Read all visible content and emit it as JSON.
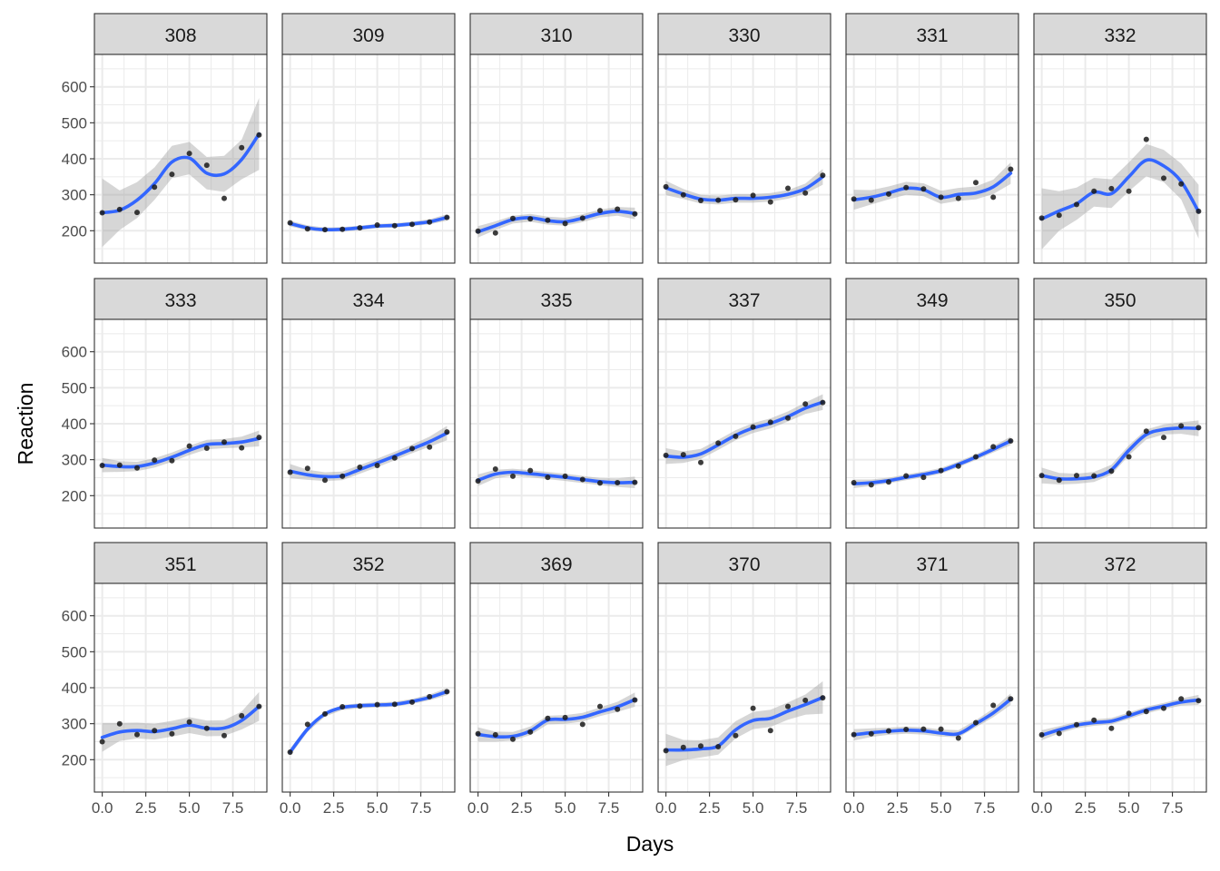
{
  "chart_data": {
    "type": "scatter",
    "xlabel": "Days",
    "ylabel": "Reaction",
    "xlim": [
      -0.45,
      9.45
    ],
    "ylim": [
      110,
      690
    ],
    "xticks": [
      0.0,
      2.5,
      5.0,
      7.5
    ],
    "xtick_labels": [
      "0.0",
      "2.5",
      "5.0",
      "7.5"
    ],
    "yticks": [
      200,
      300,
      400,
      500,
      600
    ],
    "ytick_labels": [
      "200",
      "300",
      "400",
      "500",
      "600"
    ],
    "facet_columns": 6,
    "grid": true,
    "colors": {
      "smooth": "#3366ff",
      "ribbon": "#999999",
      "points": "#1a1a1a",
      "strip": "#d9d9d9"
    },
    "x": [
      0,
      1,
      2,
      3,
      4,
      5,
      6,
      7,
      8,
      9
    ],
    "series": [
      {
        "panel": "308",
        "y": [
          250,
          259,
          251,
          321,
          357,
          415,
          382,
          290,
          431,
          466
        ],
        "smooth": [
          250,
          257,
          285,
          331,
          391,
          402,
          360,
          358,
          398,
          469
        ],
        "se": [
          95,
          55,
          50,
          45,
          45,
          45,
          45,
          50,
          55,
          100
        ]
      },
      {
        "panel": "309",
        "y": [
          222,
          205,
          203,
          204,
          208,
          216,
          214,
          218,
          224,
          237
        ],
        "smooth": [
          220,
          208,
          203,
          204,
          208,
          213,
          215,
          219,
          225,
          237
        ],
        "se": [
          8,
          7,
          6,
          6,
          6,
          6,
          6,
          6,
          7,
          9
        ]
      },
      {
        "panel": "310",
        "y": [
          199,
          194,
          234,
          233,
          229,
          220,
          235,
          256,
          260,
          247
        ],
        "smooth": [
          197,
          214,
          231,
          236,
          228,
          225,
          235,
          248,
          254,
          248
        ],
        "se": [
          16,
          12,
          11,
          11,
          11,
          11,
          11,
          11,
          12,
          16
        ]
      },
      {
        "panel": "330",
        "y": [
          322,
          300,
          284,
          285,
          286,
          298,
          280,
          318,
          305,
          354
        ],
        "smooth": [
          319,
          302,
          288,
          285,
          290,
          290,
          293,
          301,
          317,
          350
        ],
        "se": [
          20,
          14,
          12,
          12,
          12,
          12,
          12,
          12,
          14,
          22
        ]
      },
      {
        "panel": "331",
        "y": [
          288,
          285,
          302,
          320,
          316,
          293,
          290,
          334,
          293,
          371
        ],
        "smooth": [
          286,
          293,
          305,
          318,
          314,
          293,
          301,
          305,
          322,
          360
        ],
        "se": [
          28,
          20,
          18,
          18,
          18,
          18,
          18,
          18,
          20,
          30
        ]
      },
      {
        "panel": "332",
        "y": [
          235,
          243,
          273,
          310,
          317,
          310,
          454,
          346,
          330,
          254
        ],
        "smooth": [
          233,
          255,
          275,
          307,
          303,
          350,
          396,
          380,
          337,
          253
        ],
        "se": [
          85,
          55,
          45,
          40,
          40,
          40,
          45,
          45,
          50,
          75
        ]
      },
      {
        "panel": "333",
        "y": [
          284,
          285,
          277,
          299,
          297,
          338,
          332,
          349,
          333,
          362
        ],
        "smooth": [
          285,
          281,
          281,
          291,
          307,
          326,
          342,
          345,
          349,
          359
        ],
        "se": [
          20,
          15,
          13,
          13,
          13,
          13,
          13,
          13,
          15,
          22
        ]
      },
      {
        "panel": "334",
        "y": [
          265,
          276,
          243,
          254,
          279,
          284,
          305,
          331,
          335,
          377
        ],
        "smooth": [
          268,
          258,
          253,
          255,
          273,
          291,
          310,
          330,
          350,
          374
        ],
        "se": [
          20,
          14,
          12,
          12,
          12,
          12,
          12,
          12,
          14,
          20
        ]
      },
      {
        "panel": "335",
        "y": [
          241,
          274,
          254,
          270,
          251,
          254,
          245,
          235,
          236,
          237
        ],
        "smooth": [
          243,
          260,
          265,
          261,
          256,
          251,
          245,
          239,
          236,
          237
        ],
        "se": [
          16,
          12,
          10,
          10,
          10,
          10,
          10,
          10,
          12,
          16
        ]
      },
      {
        "panel": "337",
        "y": [
          312,
          314,
          292,
          346,
          365,
          391,
          404,
          416,
          455,
          459
        ],
        "smooth": [
          310,
          307,
          316,
          341,
          368,
          388,
          401,
          420,
          443,
          460
        ],
        "se": [
          22,
          16,
          14,
          14,
          14,
          14,
          14,
          14,
          16,
          22
        ]
      },
      {
        "panel": "349",
        "y": [
          236,
          230,
          238,
          255,
          251,
          270,
          282,
          308,
          336,
          352
        ],
        "smooth": [
          233,
          236,
          242,
          251,
          259,
          269,
          287,
          307,
          329,
          352
        ],
        "se": [
          12,
          9,
          8,
          8,
          8,
          8,
          8,
          8,
          9,
          12
        ]
      },
      {
        "panel": "350",
        "y": [
          256,
          243,
          256,
          255,
          268,
          308,
          379,
          362,
          394,
          389
        ],
        "smooth": [
          256,
          247,
          247,
          252,
          272,
          326,
          370,
          384,
          388,
          387
        ],
        "se": [
          22,
          16,
          14,
          14,
          14,
          14,
          14,
          14,
          16,
          22
        ]
      },
      {
        "panel": "351",
        "y": [
          250,
          300,
          270,
          281,
          272,
          305,
          287,
          267,
          322,
          348
        ],
        "smooth": [
          262,
          277,
          281,
          278,
          286,
          296,
          287,
          288,
          309,
          348
        ],
        "se": [
          40,
          25,
          22,
          22,
          22,
          22,
          22,
          22,
          25,
          40
        ]
      },
      {
        "panel": "352",
        "y": [
          221,
          298,
          327,
          347,
          349,
          353,
          354,
          360,
          375,
          389
        ],
        "smooth": [
          221,
          285,
          327,
          345,
          350,
          352,
          354,
          362,
          373,
          389
        ],
        "se": [
          10,
          8,
          7,
          7,
          7,
          7,
          7,
          7,
          8,
          10
        ]
      },
      {
        "panel": "369",
        "y": [
          272,
          269,
          257,
          277,
          315,
          317,
          298,
          348,
          340,
          366
        ],
        "smooth": [
          270,
          264,
          265,
          280,
          310,
          312,
          318,
          333,
          347,
          367
        ],
        "se": [
          20,
          14,
          12,
          12,
          12,
          12,
          12,
          12,
          14,
          20
        ]
      },
      {
        "panel": "370",
        "y": [
          225,
          234,
          238,
          236,
          267,
          343,
          281,
          348,
          365,
          372
        ],
        "smooth": [
          227,
          227,
          230,
          238,
          283,
          309,
          315,
          335,
          353,
          373
        ],
        "se": [
          45,
          28,
          24,
          24,
          24,
          24,
          24,
          24,
          28,
          45
        ]
      },
      {
        "panel": "371",
        "y": [
          270,
          272,
          280,
          284,
          285,
          285,
          260,
          303,
          351,
          369
        ],
        "smooth": [
          269,
          275,
          279,
          282,
          280,
          274,
          272,
          300,
          330,
          368
        ],
        "se": [
          16,
          12,
          10,
          10,
          10,
          10,
          10,
          10,
          12,
          16
        ]
      },
      {
        "panel": "372",
        "y": [
          269,
          273,
          297,
          310,
          287,
          329,
          334,
          343,
          369,
          364
        ],
        "smooth": [
          268,
          283,
          296,
          303,
          307,
          322,
          338,
          349,
          360,
          366
        ],
        "se": [
          14,
          10,
          9,
          9,
          9,
          9,
          9,
          9,
          10,
          14
        ]
      }
    ]
  }
}
